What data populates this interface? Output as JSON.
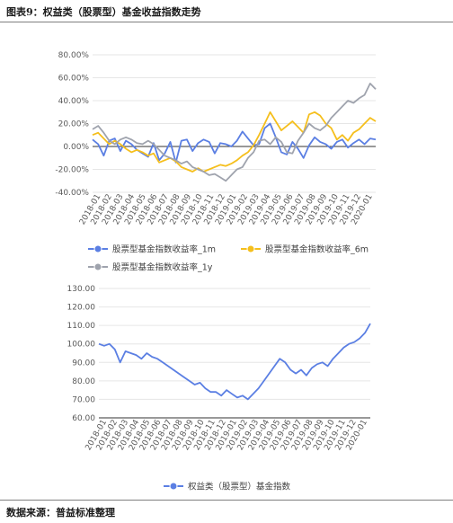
{
  "header": {
    "title": "图表9：权益类（股票型）基金收益指数走势"
  },
  "footer": {
    "source": "数据来源：普益标准整理"
  },
  "colors": {
    "series_1m": "#5b7fe3",
    "series_6m": "#f5bf1d",
    "series_1y": "#9fa3ad",
    "index": "#5b7fe3",
    "grid": "#e6e6e6",
    "axis": "#333333"
  },
  "chart_data": [
    {
      "type": "line",
      "ylim": [
        -0.4,
        0.8
      ],
      "ytick_labels": [
        "80.00%",
        "60.00%",
        "40.00%",
        "20.00%",
        "0.00%",
        "-20.00%",
        "-40.00%"
      ],
      "ytick_values": [
        0.8,
        0.6,
        0.4,
        0.2,
        0,
        -0.2,
        -0.4
      ],
      "x_labels": [
        "2018-01",
        "2018-02",
        "2018-03",
        "2018-04",
        "2018-05",
        "2018-06",
        "2018-07",
        "2018-08",
        "2018-09",
        "2018-10",
        "2018-11",
        "2018-12",
        "2019-01",
        "2019-02",
        "2019-03",
        "2019-04",
        "2019-05",
        "2019-06",
        "2019-07",
        "2019-08",
        "2019-09",
        "2019-10",
        "2019-11",
        "2019-12",
        "2020-01"
      ],
      "legend_position": "bottom",
      "series": [
        {
          "name": "股票型基金指数收益率_1m",
          "color_key": "series_1m",
          "values": [
            0.06,
            0.02,
            -0.08,
            0.05,
            0.07,
            -0.04,
            0.05,
            0.02,
            -0.03,
            -0.06,
            -0.09,
            0.03,
            -0.12,
            -0.06,
            0.04,
            -0.14,
            0.05,
            0.06,
            -0.04,
            0.03,
            0.06,
            0.04,
            -0.06,
            0.03,
            0.02,
            0.0,
            0.05,
            0.13,
            0.07,
            0.01,
            0.02,
            0.16,
            0.2,
            0.08,
            -0.05,
            -0.07,
            0.04,
            -0.02,
            -0.1,
            0.01,
            0.08,
            0.04,
            0.02,
            -0.02,
            0.04,
            0.06,
            -0.01,
            0.03,
            0.06,
            0.02,
            0.07,
            0.06
          ]
        },
        {
          "name": "股票型基金指数收益率_6m",
          "color_key": "series_6m",
          "values": [
            0.1,
            0.12,
            0.07,
            0.02,
            0.05,
            0.02,
            -0.02,
            -0.05,
            -0.03,
            -0.05,
            -0.08,
            -0.06,
            -0.14,
            -0.12,
            -0.1,
            -0.13,
            -0.18,
            -0.2,
            -0.22,
            -0.19,
            -0.22,
            -0.2,
            -0.18,
            -0.16,
            -0.17,
            -0.15,
            -0.12,
            -0.08,
            -0.05,
            0.01,
            0.1,
            0.2,
            0.3,
            0.22,
            0.14,
            0.18,
            0.22,
            0.17,
            0.12,
            0.28,
            0.3,
            0.27,
            0.2,
            0.16,
            0.06,
            0.1,
            0.05,
            0.12,
            0.15,
            0.2,
            0.25,
            0.22
          ]
        },
        {
          "name": "股票型基金指数收益率_1y",
          "color_key": "series_1y",
          "values": [
            0.15,
            0.18,
            0.12,
            0.05,
            0.02,
            0.06,
            0.08,
            0.06,
            0.03,
            0.02,
            0.05,
            0.02,
            -0.03,
            -0.08,
            -0.1,
            -0.12,
            -0.15,
            -0.13,
            -0.18,
            -0.2,
            -0.22,
            -0.25,
            -0.24,
            -0.27,
            -0.3,
            -0.25,
            -0.2,
            -0.18,
            -0.1,
            -0.05,
            0.05,
            0.06,
            0.02,
            0.08,
            0.04,
            -0.05,
            -0.06,
            0.05,
            0.12,
            0.2,
            0.16,
            0.14,
            0.18,
            0.25,
            0.3,
            0.35,
            0.4,
            0.38,
            0.42,
            0.45,
            0.55,
            0.5
          ]
        }
      ]
    },
    {
      "type": "line",
      "ylim": [
        60,
        130
      ],
      "ytick_labels": [
        "130.00",
        "120.00",
        "110.00",
        "100.00",
        "90.00",
        "80.00",
        "70.00",
        "60.00"
      ],
      "ytick_values": [
        130,
        120,
        110,
        100,
        90,
        80,
        70,
        60
      ],
      "x_labels": [
        "2018-01",
        "2018-02",
        "2018-03",
        "2018-04",
        "2018-05",
        "2018-06",
        "2018-07",
        "2018-08",
        "2018-09",
        "2018-10",
        "2018-11",
        "2018-12",
        "2019-01",
        "2019-02",
        "2019-03",
        "2019-04",
        "2019-05",
        "2019-06",
        "2019-07",
        "2019-08",
        "2019-09",
        "2019-10",
        "2019-11",
        "2019-12",
        "2020-01"
      ],
      "legend_position": "bottom",
      "series": [
        {
          "name": "权益类（股票型）基金指数",
          "color_key": "index",
          "values": [
            100,
            99,
            100,
            97,
            90,
            96,
            95,
            94,
            92,
            95,
            93,
            92,
            90,
            88,
            86,
            84,
            82,
            80,
            78,
            79,
            76,
            74,
            74,
            72,
            75,
            73,
            71,
            72,
            70,
            73,
            76,
            80,
            84,
            88,
            92,
            90,
            86,
            84,
            86,
            83,
            87,
            89,
            90,
            88,
            92,
            95,
            98,
            100,
            101,
            103,
            106,
            111
          ]
        }
      ]
    }
  ]
}
